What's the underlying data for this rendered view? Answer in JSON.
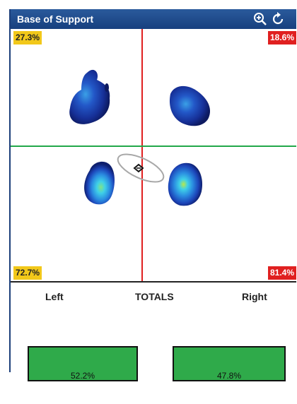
{
  "panel": {
    "title": "Base of Support",
    "icons": {
      "zoom": "zoom-in-icon",
      "reset": "refresh-icon"
    }
  },
  "quadrants": {
    "top_left": "27.3%",
    "top_right": "18.6%",
    "bottom_left": "72.7%",
    "bottom_right": "81.4%"
  },
  "totals": {
    "left_label": "Left",
    "center_label": "TOTALS",
    "right_label": "Right",
    "left_value": "52.2%",
    "right_value": "47.8%"
  },
  "colors": {
    "titlebar": "#17407e",
    "vertical_axis": "#e02020",
    "horizontal_axis": "#22a84a",
    "top_badges": "#f2c81a",
    "right_badges": "#e02020",
    "total_bars": "#2faa4a"
  }
}
